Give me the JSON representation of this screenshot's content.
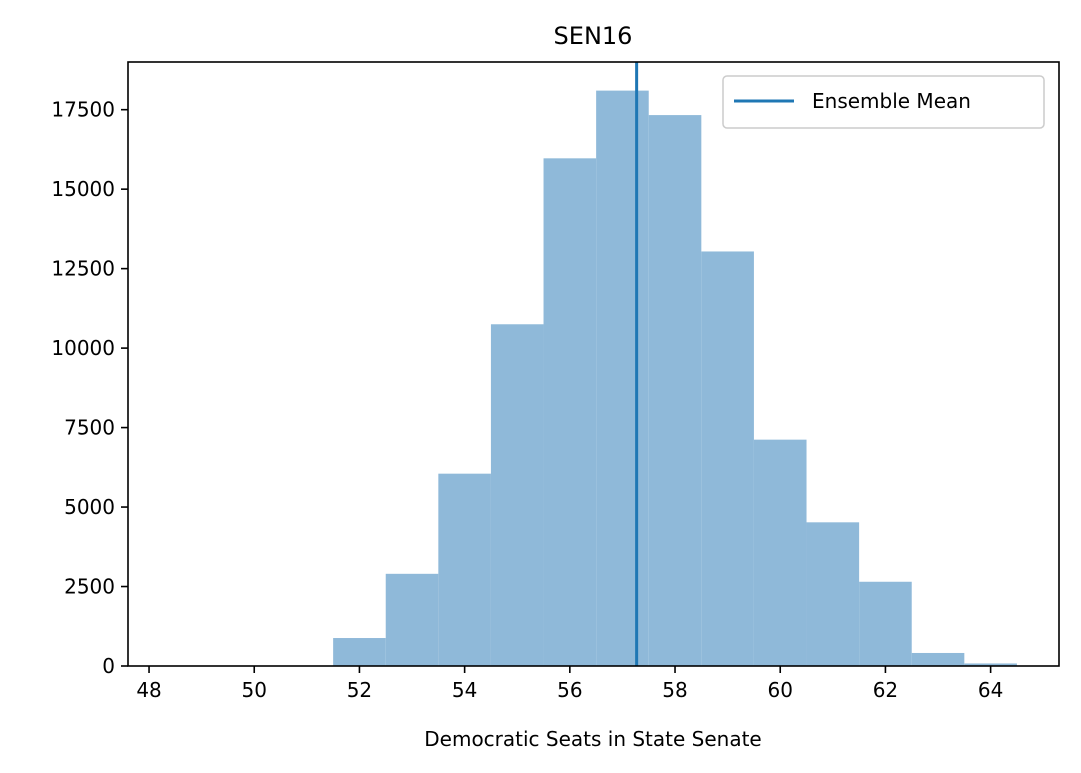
{
  "chart_data": {
    "type": "bar",
    "title": "SEN16",
    "xlabel": "Democratic Seats in State Senate",
    "ylabel": "",
    "bin_width": 1,
    "bins": [
      {
        "left": 51.5,
        "right": 52.5,
        "count": 880
      },
      {
        "left": 52.5,
        "right": 53.5,
        "count": 2900
      },
      {
        "left": 53.5,
        "right": 54.5,
        "count": 6050
      },
      {
        "left": 54.5,
        "right": 55.5,
        "count": 10750
      },
      {
        "left": 55.5,
        "right": 56.5,
        "count": 15970
      },
      {
        "left": 56.5,
        "right": 57.5,
        "count": 18100
      },
      {
        "left": 57.5,
        "right": 58.5,
        "count": 17330
      },
      {
        "left": 58.5,
        "right": 59.5,
        "count": 13040
      },
      {
        "left": 59.5,
        "right": 60.5,
        "count": 7120
      },
      {
        "left": 60.5,
        "right": 61.5,
        "count": 4520
      },
      {
        "left": 61.5,
        "right": 62.5,
        "count": 2650
      },
      {
        "left": 62.5,
        "right": 63.5,
        "count": 410
      },
      {
        "left": 63.5,
        "right": 64.5,
        "count": 80
      }
    ],
    "ensemble_mean": 57.27,
    "xlim": [
      47.6,
      65.3
    ],
    "ylim": [
      0,
      19000
    ],
    "xticks": [
      48,
      50,
      52,
      54,
      56,
      58,
      60,
      62,
      64
    ],
    "yticks": [
      0,
      2500,
      5000,
      7500,
      10000,
      12500,
      15000,
      17500
    ],
    "legend": {
      "label": "Ensemble Mean",
      "placement": "top-right"
    },
    "colors": {
      "bars": "#8fb9d9",
      "mean_line": "#1f77b4"
    },
    "grid": false
  }
}
